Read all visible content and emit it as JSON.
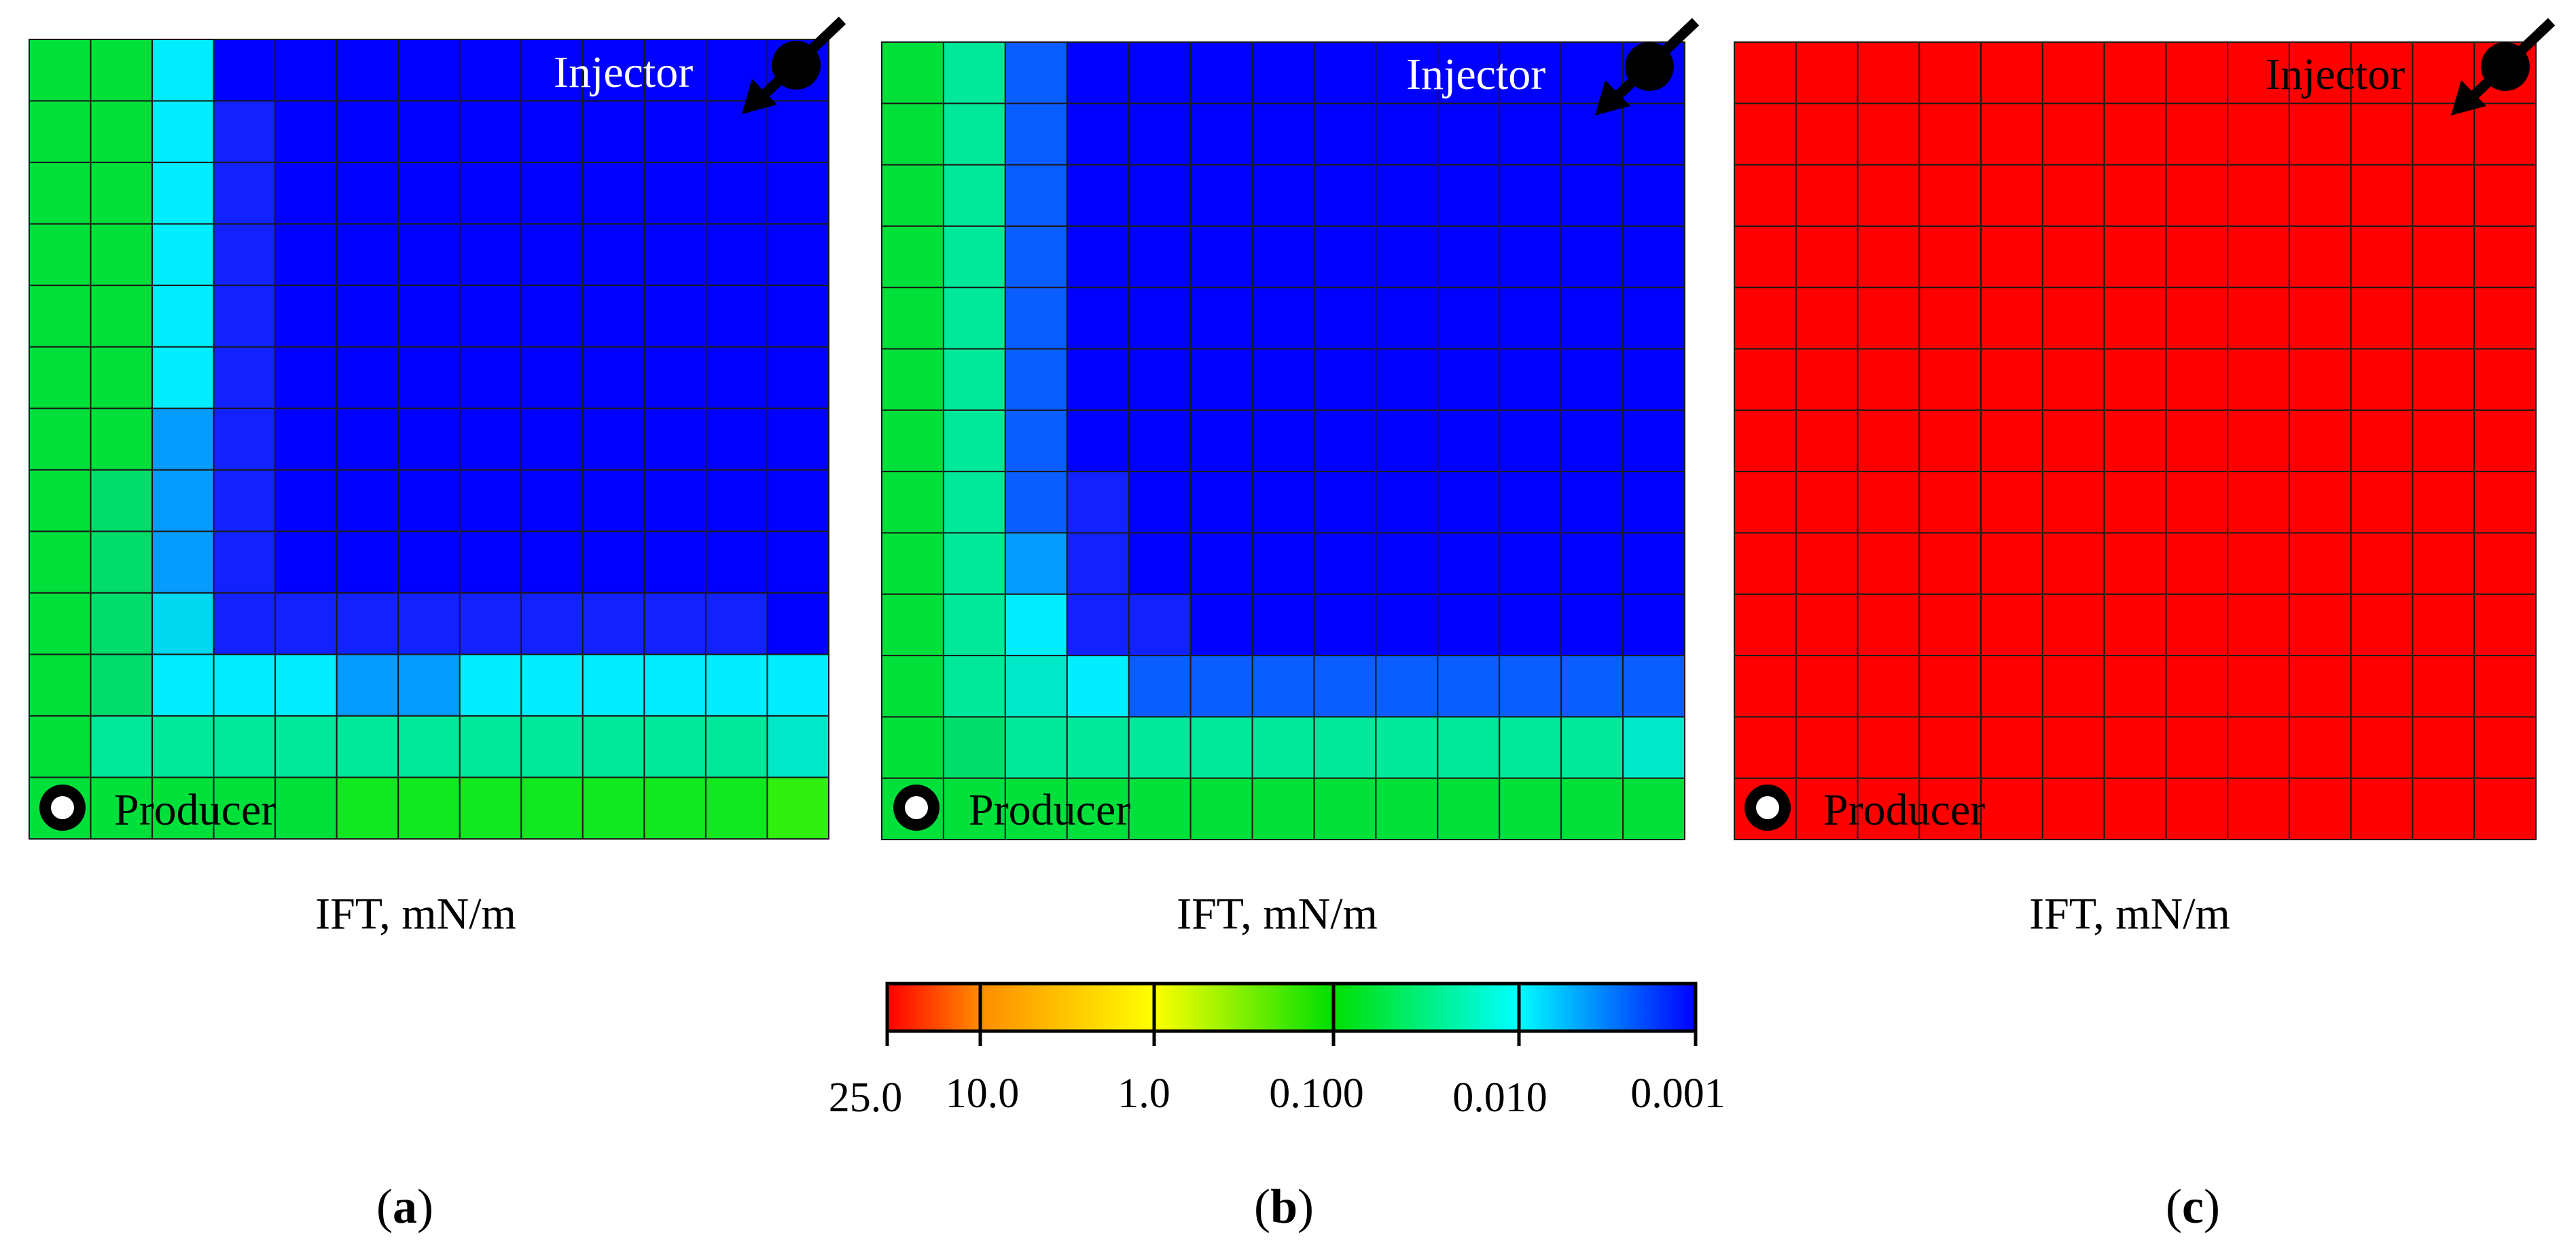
{
  "figure": {
    "colorbar": {
      "labels": [
        "25.0",
        "10.0",
        "1.0",
        "0.100",
        "0.010",
        "0.001"
      ],
      "stop_colors": [
        "#ff0000",
        "#ff8c00",
        "#ffff00",
        "#00e000",
        "#00ffff",
        "#0000ff"
      ]
    },
    "colors": {
      "R": "#ff0000",
      "B": "#0000ff",
      "b": "#1122ff",
      "m": "#0a5dff",
      "l": "#069cff",
      "C": "#00eeff",
      "c": "#00d8f0",
      "T": "#00e8c8",
      "t": "#00e89a",
      "s": "#00dd6a",
      "G": "#00e03a",
      "g": "#12e820",
      "L": "#30f010"
    },
    "panels": [
      {
        "id": "a",
        "caption_letter": "a",
        "axis_label": "IFT, mN/m",
        "injector_label": "Injector",
        "producer_label": "Producer",
        "grid_rows": [
          "GGCBBBBBBBBBB",
          "GGCbBBBBBBBBB",
          "GGCbBBBBBBBBB",
          "GGCbBBBBBBBBB",
          "GGCbBBBBBBBBB",
          "GGCbBBBBBBBBB",
          "GGlbBBBBBBBBB",
          "GslbBBBBBBBBB",
          "GslbBBBBBBBBB",
          "GscbbbbbbbbbB",
          "GsCCCllCCCCCC",
          "GtttttttttttT",
          "GGGGGgggggggL"
        ]
      },
      {
        "id": "b",
        "caption_letter": "b",
        "axis_label": "IFT, mN/m",
        "injector_label": "Injector",
        "producer_label": "Producer",
        "grid_rows": [
          "GtmBBBBBBBBBB",
          "GtmBBBBBBBBBB",
          "GtmBBBBBBBBBB",
          "GtmBBBBBBBBBB",
          "GtmBBBBBBBBBB",
          "GtmBBBBBBBBBB",
          "GtmBBBBBBBBBB",
          "GtmbBBBBBBBBB",
          "GtlbBBBBBBBBB",
          "GtCbbBBBBBBBB",
          "GtTCmmmmmmmmm",
          "GsttttttttttT",
          "GGGGGGGGGGGGG"
        ]
      },
      {
        "id": "c",
        "caption_letter": "c",
        "axis_label": "IFT, mN/m",
        "injector_label": "Injector",
        "producer_label": "Producer",
        "grid_rows": [
          "RRRRRRRRRRRRR",
          "RRRRRRRRRRRRR",
          "RRRRRRRRRRRRR",
          "RRRRRRRRRRRRR",
          "RRRRRRRRRRRRR",
          "RRRRRRRRRRRRR",
          "RRRRRRRRRRRRR",
          "RRRRRRRRRRRRR",
          "RRRRRRRRRRRRR",
          "RRRRRRRRRRRRR",
          "RRRRRRRRRRRRR",
          "RRRRRRRRRRRRR",
          "RRRRRRRRRRRRR"
        ]
      }
    ]
  }
}
